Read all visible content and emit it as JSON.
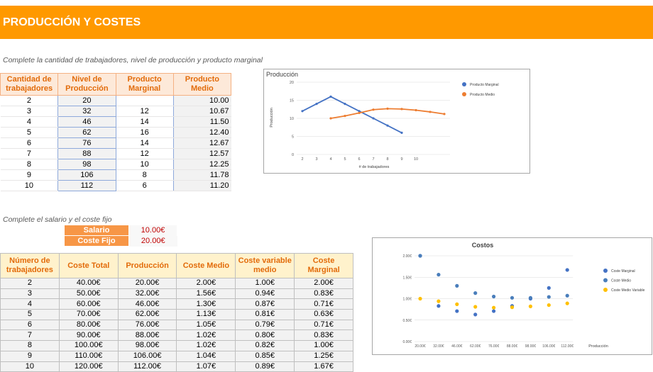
{
  "header": {
    "title": "PRODUCCIÓN Y COSTES"
  },
  "instructions": [
    "Complete la cantidad de trabajadores, nivel de producción y producto marginal",
    "Complete el salario y el coste fijo"
  ],
  "production_table": {
    "columns": [
      "Cantidad de trabajadores",
      "Nivel de Producción",
      "Producto Marginal",
      "Producto Medio"
    ],
    "rows": [
      [
        "2",
        "20",
        null,
        "10.00"
      ],
      [
        "3",
        "32",
        "12",
        "10.67"
      ],
      [
        "4",
        "46",
        "14",
        "11.50"
      ],
      [
        "5",
        "62",
        "16",
        "12.40"
      ],
      [
        "6",
        "76",
        "14",
        "12.67"
      ],
      [
        "7",
        "88",
        "12",
        "12.57"
      ],
      [
        "8",
        "98",
        "10",
        "12.25"
      ],
      [
        "9",
        "106",
        "8",
        "11.78"
      ],
      [
        "10",
        "112",
        "6",
        "11.20"
      ]
    ]
  },
  "inputs": {
    "rows": [
      [
        "Salario",
        "10.00€"
      ],
      [
        "Coste Fijo",
        "20.00€"
      ]
    ]
  },
  "cost_table": {
    "columns": [
      "Número de trabajadores",
      "Coste Total",
      "Producción",
      "Coste Medio",
      "Coste variable medio",
      "Coste Marginal"
    ],
    "rows": [
      [
        "2",
        "40.00€",
        "20.00€",
        "2.00€",
        "1.00€",
        "2.00€"
      ],
      [
        "3",
        "50.00€",
        "32.00€",
        "1.56€",
        "0.94€",
        "0.83€"
      ],
      [
        "4",
        "60.00€",
        "46.00€",
        "1.30€",
        "0.87€",
        "0.71€"
      ],
      [
        "5",
        "70.00€",
        "62.00€",
        "1.13€",
        "0.81€",
        "0.63€"
      ],
      [
        "6",
        "80.00€",
        "76.00€",
        "1.05€",
        "0.79€",
        "0.71€"
      ],
      [
        "7",
        "90.00€",
        "88.00€",
        "1.02€",
        "0.80€",
        "0.83€"
      ],
      [
        "8",
        "100.00€",
        "98.00€",
        "1.02€",
        "0.82€",
        "1.00€"
      ],
      [
        "9",
        "110.00€",
        "106.00€",
        "1.04€",
        "0.85€",
        "1.25€"
      ],
      [
        "10",
        "120.00€",
        "112.00€",
        "1.07€",
        "0.89€",
        "1.67€"
      ]
    ]
  },
  "chart_data": [
    {
      "type": "line",
      "title": "Producción",
      "x_label": "# de trabajadores",
      "y_label": "Producción",
      "categories": [
        "2",
        "3",
        "4",
        "5",
        "6",
        "7",
        "8",
        "9",
        "10",
        null,
        null
      ],
      "ylim": [
        0,
        20
      ],
      "yticks": [
        0,
        5,
        10,
        15,
        20
      ],
      "grid": true,
      "series": [
        {
          "name": "Producto Marginal",
          "color": "#4472c4",
          "values": [
            12,
            14,
            16,
            14,
            12,
            10,
            8,
            6,
            null,
            null,
            null
          ]
        },
        {
          "name": "Producto Medio",
          "color": "#ed7d31",
          "values": [
            null,
            null,
            10.0,
            10.67,
            11.5,
            12.4,
            12.67,
            12.57,
            12.25,
            11.78,
            11.2
          ]
        }
      ]
    },
    {
      "type": "scatter",
      "title": "Costos",
      "x_label": "Producción",
      "categories": [
        "20.00€",
        "32.00€",
        "46.00€",
        "62.00€",
        "76.00€",
        "88.00€",
        "98.00€",
        "106.00€",
        "112.00€"
      ],
      "ylim": [
        0,
        2
      ],
      "yticks": [
        {
          "value": 0,
          "label": "0.00€"
        },
        {
          "value": 0.5,
          "label": "0.50€"
        },
        {
          "value": 1,
          "label": "1.00€"
        },
        {
          "value": 1.5,
          "label": "1.50€"
        },
        {
          "value": 2,
          "label": "2.00€"
        }
      ],
      "grid": true,
      "series": [
        {
          "name": "Coste Marginal",
          "color": "#4472c4",
          "values": [
            2.0,
            0.83,
            0.71,
            0.63,
            0.71,
            0.83,
            1.0,
            1.25,
            1.67
          ]
        },
        {
          "name": "Coste Medio",
          "color": "#4a7ebb",
          "values": [
            2.0,
            1.56,
            1.3,
            1.13,
            1.05,
            1.02,
            1.02,
            1.04,
            1.07
          ]
        },
        {
          "name": "Coste Medio Variable",
          "color": "#ffc000",
          "values": [
            1.0,
            0.94,
            0.87,
            0.81,
            0.79,
            0.8,
            0.82,
            0.85,
            0.89
          ]
        }
      ]
    }
  ]
}
